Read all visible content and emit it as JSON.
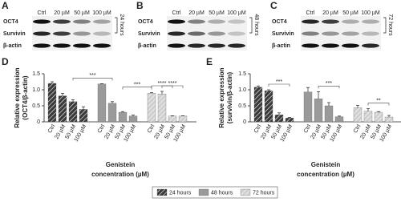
{
  "blots": [
    {
      "label": "A",
      "columns": [
        "Ctrl",
        "20 µM",
        "50 µM",
        "100 µM"
      ],
      "rows": [
        "OCT4",
        "Survivin",
        "β-actin"
      ],
      "time": "24 hours"
    },
    {
      "label": "B",
      "columns": [
        "Ctrl",
        "20 µM",
        "50 µM",
        "100 µM"
      ],
      "rows": [
        "OCT4",
        "Survivin",
        "β-actin"
      ],
      "time": "48 hours"
    },
    {
      "label": "C",
      "columns": [
        "Ctrl",
        "20 µM",
        "50 µM",
        "100 µM"
      ],
      "rows": [
        "OCT4",
        "Survivin",
        "β-actin"
      ],
      "time": "72 hours"
    }
  ],
  "chart_data": [
    {
      "type": "bar",
      "label": "D",
      "ylabel": [
        "Relative expression",
        "(OCT4/β-actin)"
      ],
      "xlabel": [
        "Genistein",
        "concentration (µM)"
      ],
      "categories": [
        "Ctrl",
        "20 µM",
        "50 µM",
        "100 µM"
      ],
      "series": [
        {
          "name": "24 hours",
          "color": "#3a3a3a",
          "hatch": true,
          "values": [
            1.2,
            0.81,
            0.63,
            0.39
          ],
          "errors": [
            0.05,
            0.08,
            0.06,
            0.08
          ]
        },
        {
          "name": "48 hours",
          "color": "#9a9a9a",
          "hatch": false,
          "values": [
            1.18,
            0.58,
            0.3,
            0.18
          ],
          "errors": [
            0.01,
            0.05,
            0.02,
            0.03
          ]
        },
        {
          "name": "72 hours",
          "color": "#cfcfcf",
          "hatch": true,
          "values": [
            0.89,
            0.87,
            0.18,
            0.18
          ],
          "errors": [
            0.02,
            0.08,
            0.01,
            0.01
          ]
        }
      ],
      "annotations": [
        "***",
        "***",
        "****",
        "****"
      ],
      "ylim": [
        0,
        1.5
      ],
      "yticks": [
        0,
        0.5,
        {
          "value": 1,
          "label": "1.0"
        },
        1.5
      ]
    },
    {
      "type": "bar",
      "label": "E",
      "ylabel": [
        "Relative expression",
        "(survivin/β-actin)"
      ],
      "xlabel": [
        "Genistein",
        "concentration (µM)"
      ],
      "categories": [
        "Ctrl",
        "20 µM",
        "50 µM",
        "100 µM"
      ],
      "series": [
        {
          "color": "#3a3a3a",
          "hatch": true,
          "values": [
            1.08,
            0.97,
            0.22,
            0.12
          ],
          "errors": [
            0.04,
            0.03,
            0.06,
            0.02
          ]
        },
        {
          "color": "#9a9a9a",
          "hatch": false,
          "values": [
            0.93,
            0.72,
            0.5,
            0.16
          ],
          "errors": [
            0.14,
            0.22,
            0.1,
            0.02
          ]
        },
        {
          "color": "#cfcfcf",
          "hatch": true,
          "values": [
            0.44,
            0.33,
            0.3,
            0.15
          ],
          "errors": [
            0.07,
            0.08,
            0.02,
            0.05
          ]
        }
      ],
      "annotations": [
        "***",
        "***",
        "**"
      ],
      "ylim": [
        0,
        1.5
      ],
      "yticks": [
        0,
        0.5,
        {
          "value": 1,
          "label": "1.0"
        },
        1.5
      ]
    }
  ]
}
